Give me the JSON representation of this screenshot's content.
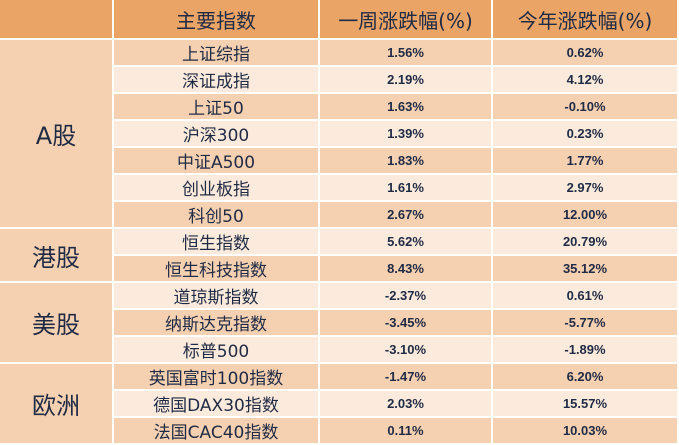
{
  "headers": {
    "index": "主要指数",
    "week": "一周涨跌幅(%)",
    "ytd": "今年涨跌幅(%)"
  },
  "regions": [
    "A股",
    "港股",
    "美股",
    "欧洲"
  ],
  "rows": [
    {
      "name": "上证综指",
      "week": "1.56%",
      "ytd": "0.62%"
    },
    {
      "name": "深证成指",
      "week": "2.19%",
      "ytd": "4.12%"
    },
    {
      "name": "上证50",
      "week": "1.63%",
      "ytd": "-0.10%"
    },
    {
      "name": "沪深300",
      "week": "1.39%",
      "ytd": "0.23%"
    },
    {
      "name": "中证A500",
      "week": "1.83%",
      "ytd": "1.77%"
    },
    {
      "name": "创业板指",
      "week": "1.61%",
      "ytd": "2.97%"
    },
    {
      "name": "科创50",
      "week": "2.67%",
      "ytd": "12.00%"
    },
    {
      "name": "恒生指数",
      "week": "5.62%",
      "ytd": "20.79%"
    },
    {
      "name": "恒生科技指数",
      "week": "8.43%",
      "ytd": "35.12%"
    },
    {
      "name": "道琼斯指数",
      "week": "-2.37%",
      "ytd": "0.61%"
    },
    {
      "name": "纳斯达克指数",
      "week": "-3.45%",
      "ytd": "-5.77%"
    },
    {
      "name": "标普500",
      "week": "-3.10%",
      "ytd": "-1.89%"
    },
    {
      "name": "英国富时100指数",
      "week": "-1.47%",
      "ytd": "6.20%"
    },
    {
      "name": "德国DAX30指数",
      "week": "2.03%",
      "ytd": "15.57%"
    },
    {
      "name": "法国CAC40指数",
      "week": "0.11%",
      "ytd": "10.03%"
    }
  ]
}
